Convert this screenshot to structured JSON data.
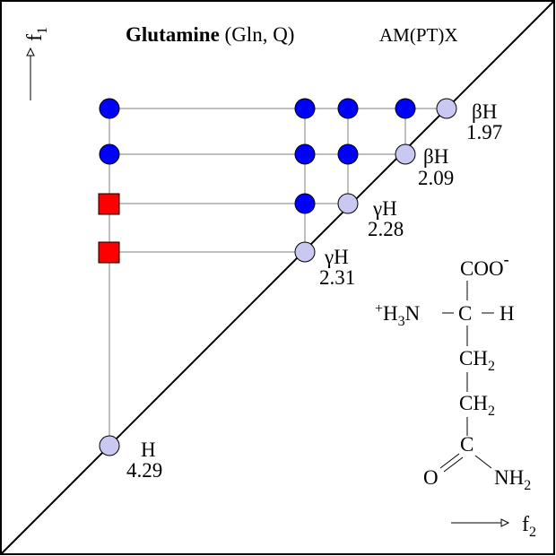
{
  "figure": {
    "title_bold": "Glutamine",
    "title_rest": " (Gln, Q)",
    "spin_system": "AM(PT)X",
    "axis_f1": {
      "letter": "f",
      "subscript": "1"
    },
    "axis_f2": {
      "letter": "f",
      "subscript": "2"
    }
  },
  "colors": {
    "cross_peak": "#0000ff",
    "relayed_peak": "#ff0000",
    "diagonal_peak": "#c8c8f0",
    "lines": "#808080"
  },
  "peaks": [
    {
      "id": "betaH-1",
      "greek": "β",
      "atom": "H",
      "shift": "1.97"
    },
    {
      "id": "betaH-2",
      "greek": "β",
      "atom": "H",
      "shift": "2.09"
    },
    {
      "id": "gammaH-1",
      "greek": "γ",
      "atom": "H",
      "shift": "2.28"
    },
    {
      "id": "gammaH-2",
      "greek": "γ",
      "atom": "H",
      "shift": "2.31"
    },
    {
      "id": "alphaH",
      "greek": "",
      "atom": "H",
      "shift": "4.29"
    }
  ],
  "structure": {
    "coo": "COO",
    "coo_charge": "-",
    "amine_plus": "+",
    "amine_h": "H",
    "amine_h_sub": "3",
    "amine_n": "N",
    "alpha_c": "C",
    "alpha_h": "H",
    "ch2_a": "CH",
    "ch2_a_sub": "2",
    "ch2_b": "CH",
    "ch2_b_sub": "2",
    "carbonyl_c": "C",
    "carbonyl_o": "O",
    "amide": "NH",
    "amide_sub": "2"
  }
}
